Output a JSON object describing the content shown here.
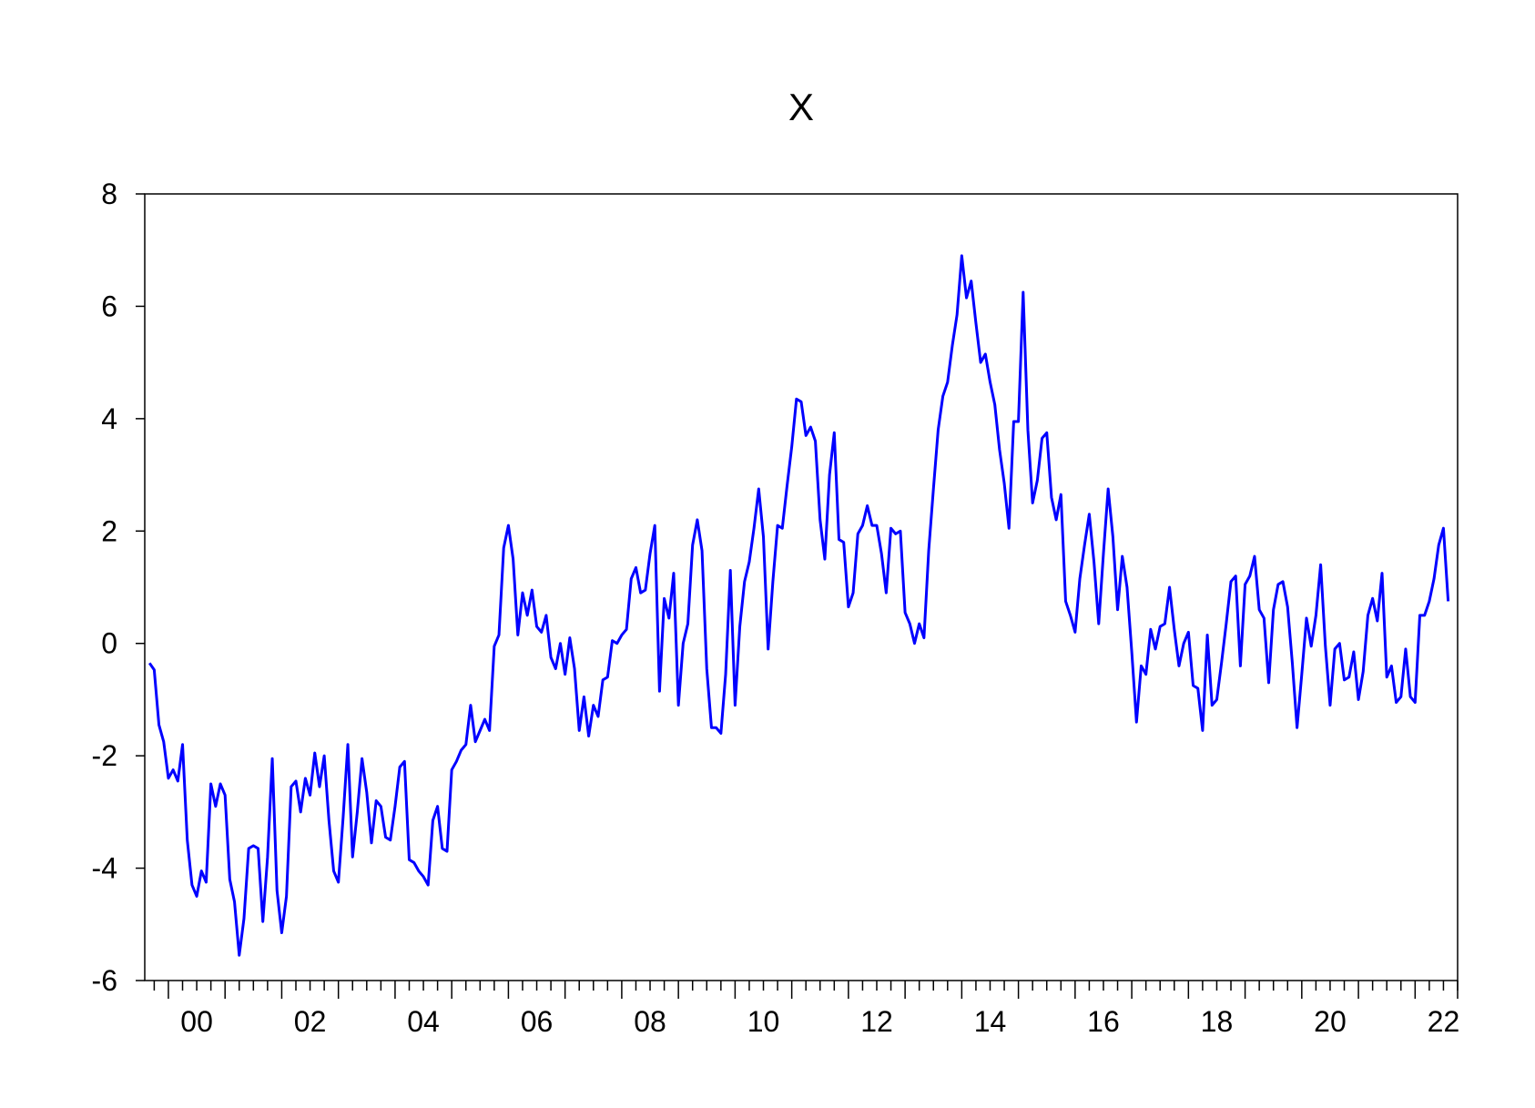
{
  "chart_data": {
    "type": "line",
    "title": "X",
    "xlabel": "",
    "ylabel": "",
    "x_tick_labels": [
      "00",
      "02",
      "04",
      "06",
      "08",
      "10",
      "12",
      "14",
      "16",
      "18",
      "20",
      "22"
    ],
    "x_tick_values": [
      2000,
      2002,
      2004,
      2006,
      2008,
      2010,
      2012,
      2014,
      2016,
      2018,
      2020,
      2022
    ],
    "xlim": [
      1999.583,
      2022.75
    ],
    "ylim": [
      -6,
      8
    ],
    "y_ticks": [
      -6,
      -4,
      -2,
      0,
      2,
      4,
      6,
      8
    ],
    "y_tick_labels": [
      "-6",
      "-4",
      "-2",
      "0",
      "2",
      "4",
      "6",
      "8"
    ],
    "grid": false,
    "frequency": "monthly",
    "start": "1999-09",
    "colors": {
      "line": "#0000ff",
      "axis": "#000000",
      "background": "#ffffff"
    },
    "series": [
      {
        "values": [
          -0.35,
          -0.47,
          -1.45,
          -1.75,
          -2.4,
          -2.25,
          -2.45,
          -1.8,
          -3.5,
          -4.3,
          -4.5,
          -4.05,
          -4.25,
          -2.5,
          -2.9,
          -2.5,
          -2.7,
          -4.2,
          -4.6,
          -5.55,
          -4.9,
          -3.65,
          -3.6,
          -3.65,
          -4.95,
          -3.8,
          -2.05,
          -4.4,
          -5.15,
          -4.5,
          -2.55,
          -2.45,
          -3.0,
          -2.4,
          -2.7,
          -1.95,
          -2.55,
          -2.0,
          -3.15,
          -4.05,
          -4.25,
          -3.1,
          -1.8,
          -3.8,
          -3.0,
          -2.05,
          -2.65,
          -3.55,
          -2.8,
          -2.9,
          -3.45,
          -3.5,
          -2.9,
          -2.2,
          -2.1,
          -3.85,
          -3.9,
          -4.05,
          -4.15,
          -4.3,
          -3.15,
          -2.9,
          -3.65,
          -3.7,
          -2.25,
          -2.1,
          -1.9,
          -1.8,
          -1.1,
          -1.75,
          -1.55,
          -1.35,
          -1.55,
          -0.05,
          0.15,
          1.7,
          2.1,
          1.5,
          0.15,
          0.9,
          0.5,
          0.95,
          0.3,
          0.2,
          0.5,
          -0.25,
          -0.45,
          0.0,
          -0.55,
          0.1,
          -0.45,
          -1.55,
          -0.95,
          -1.65,
          -1.1,
          -1.3,
          -0.65,
          -0.6,
          0.05,
          0.0,
          0.15,
          0.25,
          1.15,
          1.35,
          0.9,
          0.95,
          1.6,
          2.1,
          -0.85,
          0.8,
          0.45,
          1.25,
          -1.1,
          0.0,
          0.35,
          1.75,
          2.2,
          1.65,
          -0.45,
          -1.5,
          -1.5,
          -1.6,
          -0.55,
          1.3,
          -1.1,
          0.3,
          1.1,
          1.45,
          2.05,
          2.75,
          1.9,
          -0.1,
          1.1,
          2.1,
          2.05,
          2.8,
          3.5,
          4.35,
          4.3,
          3.7,
          3.85,
          3.6,
          2.2,
          1.5,
          3.0,
          3.75,
          1.85,
          1.8,
          0.65,
          0.9,
          1.95,
          2.1,
          2.45,
          2.1,
          2.1,
          1.6,
          0.9,
          2.05,
          1.95,
          2.0,
          0.55,
          0.35,
          0.0,
          0.35,
          0.1,
          1.65,
          2.75,
          3.8,
          4.4,
          4.65,
          5.3,
          5.85,
          6.9,
          6.15,
          6.45,
          5.7,
          5.0,
          5.15,
          4.65,
          4.25,
          3.45,
          2.85,
          2.05,
          3.95,
          3.95,
          6.25,
          3.8,
          2.5,
          2.9,
          3.65,
          3.75,
          2.6,
          2.2,
          2.65,
          0.75,
          0.5,
          0.2,
          1.15,
          1.75,
          2.3,
          1.45,
          0.35,
          1.6,
          2.75,
          1.9,
          0.6,
          1.55,
          1.0,
          -0.15,
          -1.4,
          -0.4,
          -0.55,
          0.25,
          -0.1,
          0.3,
          0.35,
          1.0,
          0.25,
          -0.4,
          0.0,
          0.2,
          -0.75,
          -0.8,
          -1.55,
          0.15,
          -1.1,
          -1.0,
          -0.35,
          0.35,
          1.1,
          1.2,
          -0.4,
          1.05,
          1.2,
          1.55,
          0.6,
          0.45,
          -0.7,
          0.6,
          1.05,
          1.1,
          0.65,
          -0.35,
          -1.5,
          -0.55,
          0.45,
          -0.05,
          0.5,
          1.4,
          -0.05,
          -1.1,
          -0.1,
          0.0,
          -0.65,
          -0.6,
          -0.15,
          -1.0,
          -0.5,
          0.5,
          0.8,
          0.4,
          1.25,
          -0.6,
          -0.4,
          -1.05,
          -0.95,
          -0.1,
          -0.95,
          -1.05,
          0.5,
          0.5,
          0.75,
          1.15,
          1.75,
          2.05,
          0.75
        ]
      }
    ]
  }
}
